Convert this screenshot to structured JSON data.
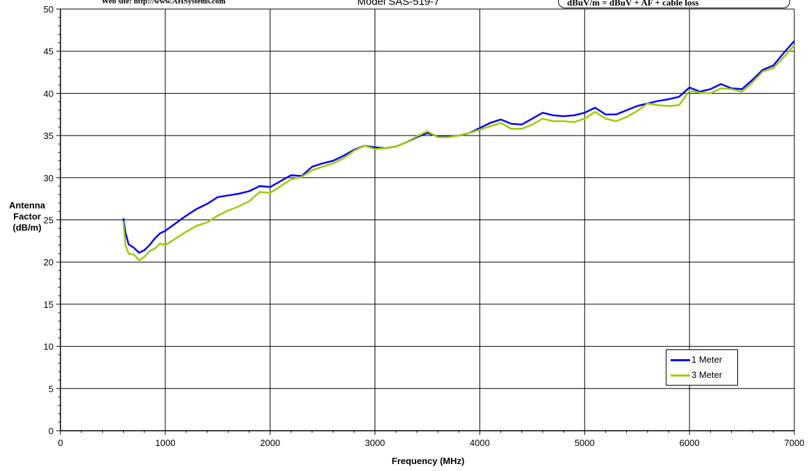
{
  "header": {
    "website": "Web site:  http://www.AHSystems.com",
    "model": "Model SAS-519-7",
    "formula": "dBuV/m = dBuV + AF + cable loss"
  },
  "chart_data": {
    "type": "line",
    "title": "",
    "xlabel": "Frequency (MHz)",
    "ylabel_lines": [
      "Antenna",
      "Factor",
      "(dB/m)"
    ],
    "xlim": [
      0,
      7000
    ],
    "ylim": [
      0,
      50
    ],
    "xticks": [
      0,
      1000,
      2000,
      3000,
      4000,
      5000,
      6000,
      7000
    ],
    "yticks": [
      0,
      5,
      10,
      15,
      20,
      25,
      30,
      35,
      40,
      45,
      50
    ],
    "grid": true,
    "legend_position": "bottom-right",
    "series": [
      {
        "name": "1 Meter",
        "color": "#0000ff",
        "points": [
          [
            600,
            25.2
          ],
          [
            620,
            23.5
          ],
          [
            650,
            22.1
          ],
          [
            700,
            21.7
          ],
          [
            750,
            21.1
          ],
          [
            800,
            21.4
          ],
          [
            850,
            22.0
          ],
          [
            900,
            22.8
          ],
          [
            950,
            23.4
          ],
          [
            1000,
            23.7
          ],
          [
            1100,
            24.6
          ],
          [
            1200,
            25.5
          ],
          [
            1300,
            26.3
          ],
          [
            1400,
            26.9
          ],
          [
            1500,
            27.7
          ],
          [
            1600,
            27.9
          ],
          [
            1700,
            28.1
          ],
          [
            1800,
            28.4
          ],
          [
            1900,
            29.0
          ],
          [
            2000,
            28.9
          ],
          [
            2100,
            29.6
          ],
          [
            2200,
            30.3
          ],
          [
            2300,
            30.2
          ],
          [
            2400,
            31.3
          ],
          [
            2500,
            31.7
          ],
          [
            2600,
            32.0
          ],
          [
            2700,
            32.6
          ],
          [
            2800,
            33.3
          ],
          [
            2900,
            33.8
          ],
          [
            3000,
            33.6
          ],
          [
            3100,
            33.5
          ],
          [
            3200,
            33.7
          ],
          [
            3300,
            34.2
          ],
          [
            3400,
            34.8
          ],
          [
            3500,
            35.3
          ],
          [
            3600,
            34.9
          ],
          [
            3700,
            34.9
          ],
          [
            3800,
            35.0
          ],
          [
            3900,
            35.3
          ],
          [
            4000,
            35.9
          ],
          [
            4100,
            36.5
          ],
          [
            4200,
            36.9
          ],
          [
            4300,
            36.4
          ],
          [
            4400,
            36.3
          ],
          [
            4500,
            37.0
          ],
          [
            4600,
            37.7
          ],
          [
            4700,
            37.4
          ],
          [
            4800,
            37.3
          ],
          [
            4900,
            37.4
          ],
          [
            5000,
            37.7
          ],
          [
            5100,
            38.3
          ],
          [
            5200,
            37.5
          ],
          [
            5300,
            37.5
          ],
          [
            5400,
            38.0
          ],
          [
            5500,
            38.5
          ],
          [
            5600,
            38.8
          ],
          [
            5700,
            39.1
          ],
          [
            5800,
            39.3
          ],
          [
            5900,
            39.6
          ],
          [
            6000,
            40.7
          ],
          [
            6100,
            40.2
          ],
          [
            6200,
            40.5
          ],
          [
            6300,
            41.1
          ],
          [
            6400,
            40.6
          ],
          [
            6500,
            40.5
          ],
          [
            6600,
            41.6
          ],
          [
            6700,
            42.8
          ],
          [
            6800,
            43.3
          ],
          [
            6900,
            44.8
          ],
          [
            7000,
            46.2
          ]
        ]
      },
      {
        "name": "3 Meter",
        "color": "#99cc00",
        "points": [
          [
            600,
            24.8
          ],
          [
            620,
            22.0
          ],
          [
            650,
            21.0
          ],
          [
            700,
            20.9
          ],
          [
            750,
            20.2
          ],
          [
            800,
            20.6
          ],
          [
            850,
            21.3
          ],
          [
            900,
            21.6
          ],
          [
            950,
            22.2
          ],
          [
            1000,
            22.0
          ],
          [
            1100,
            22.8
          ],
          [
            1200,
            23.6
          ],
          [
            1300,
            24.3
          ],
          [
            1400,
            24.7
          ],
          [
            1500,
            25.5
          ],
          [
            1600,
            26.1
          ],
          [
            1700,
            26.6
          ],
          [
            1800,
            27.2
          ],
          [
            1900,
            28.3
          ],
          [
            2000,
            28.2
          ],
          [
            2100,
            29.0
          ],
          [
            2200,
            29.8
          ],
          [
            2300,
            30.1
          ],
          [
            2400,
            30.9
          ],
          [
            2500,
            31.3
          ],
          [
            2600,
            31.7
          ],
          [
            2700,
            32.3
          ],
          [
            2800,
            33.2
          ],
          [
            2900,
            33.8
          ],
          [
            3000,
            33.4
          ],
          [
            3100,
            33.5
          ],
          [
            3200,
            33.7
          ],
          [
            3300,
            34.2
          ],
          [
            3400,
            34.9
          ],
          [
            3500,
            35.5
          ],
          [
            3600,
            34.8
          ],
          [
            3700,
            34.8
          ],
          [
            3800,
            35.0
          ],
          [
            3900,
            35.3
          ],
          [
            4000,
            35.7
          ],
          [
            4100,
            36.1
          ],
          [
            4200,
            36.5
          ],
          [
            4300,
            35.8
          ],
          [
            4400,
            35.8
          ],
          [
            4500,
            36.3
          ],
          [
            4600,
            37.0
          ],
          [
            4700,
            36.7
          ],
          [
            4800,
            36.7
          ],
          [
            4900,
            36.6
          ],
          [
            5000,
            37.0
          ],
          [
            5100,
            37.8
          ],
          [
            5200,
            37.0
          ],
          [
            5300,
            36.7
          ],
          [
            5400,
            37.2
          ],
          [
            5500,
            37.9
          ],
          [
            5600,
            38.8
          ],
          [
            5700,
            38.6
          ],
          [
            5800,
            38.5
          ],
          [
            5900,
            38.6
          ],
          [
            6000,
            40.3
          ],
          [
            6100,
            40.1
          ],
          [
            6200,
            40.0
          ],
          [
            6300,
            40.6
          ],
          [
            6400,
            40.5
          ],
          [
            6500,
            40.2
          ],
          [
            6600,
            41.3
          ],
          [
            6700,
            42.6
          ],
          [
            6800,
            43.0
          ],
          [
            6900,
            44.3
          ],
          [
            7000,
            45.7
          ]
        ]
      }
    ]
  }
}
